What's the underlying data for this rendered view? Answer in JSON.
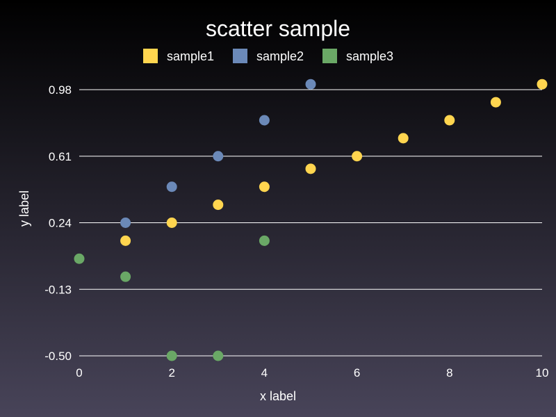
{
  "chart_data": {
    "type": "scatter",
    "title": "scatter sample",
    "xlabel": "x label",
    "ylabel": "y label",
    "xlim": [
      0,
      10
    ],
    "ylim": [
      -0.5,
      0.98
    ],
    "xticks": [
      "0",
      "2",
      "4",
      "6",
      "8",
      "10"
    ],
    "xtick_values": [
      0,
      2,
      4,
      6,
      8,
      10
    ],
    "yticks": [
      "-0.50",
      "-0.13",
      "0.24",
      "0.61",
      "0.98"
    ],
    "ytick_values": [
      -0.5,
      -0.13,
      0.24,
      0.61,
      0.98
    ],
    "grid": "horizontal",
    "legend_position": "top-center",
    "series": [
      {
        "name": "sample1",
        "color": "#ffd54f",
        "points": [
          [
            1,
            0.14
          ],
          [
            2,
            0.24
          ],
          [
            3,
            0.34
          ],
          [
            4,
            0.44
          ],
          [
            5,
            0.54
          ],
          [
            6,
            0.61
          ],
          [
            7,
            0.71
          ],
          [
            8,
            0.81
          ],
          [
            9,
            0.91
          ],
          [
            10,
            1.01
          ]
        ]
      },
      {
        "name": "sample2",
        "color": "#6b89b8",
        "points": [
          [
            1,
            0.24
          ],
          [
            2,
            0.44
          ],
          [
            3,
            0.61
          ],
          [
            4,
            0.81
          ],
          [
            5,
            1.01
          ]
        ]
      },
      {
        "name": "sample3",
        "color": "#6aa866",
        "points": [
          [
            0,
            0.04
          ],
          [
            1,
            -0.06
          ],
          [
            2,
            -0.5
          ],
          [
            3,
            -0.5
          ],
          [
            4,
            0.14
          ]
        ]
      }
    ]
  }
}
